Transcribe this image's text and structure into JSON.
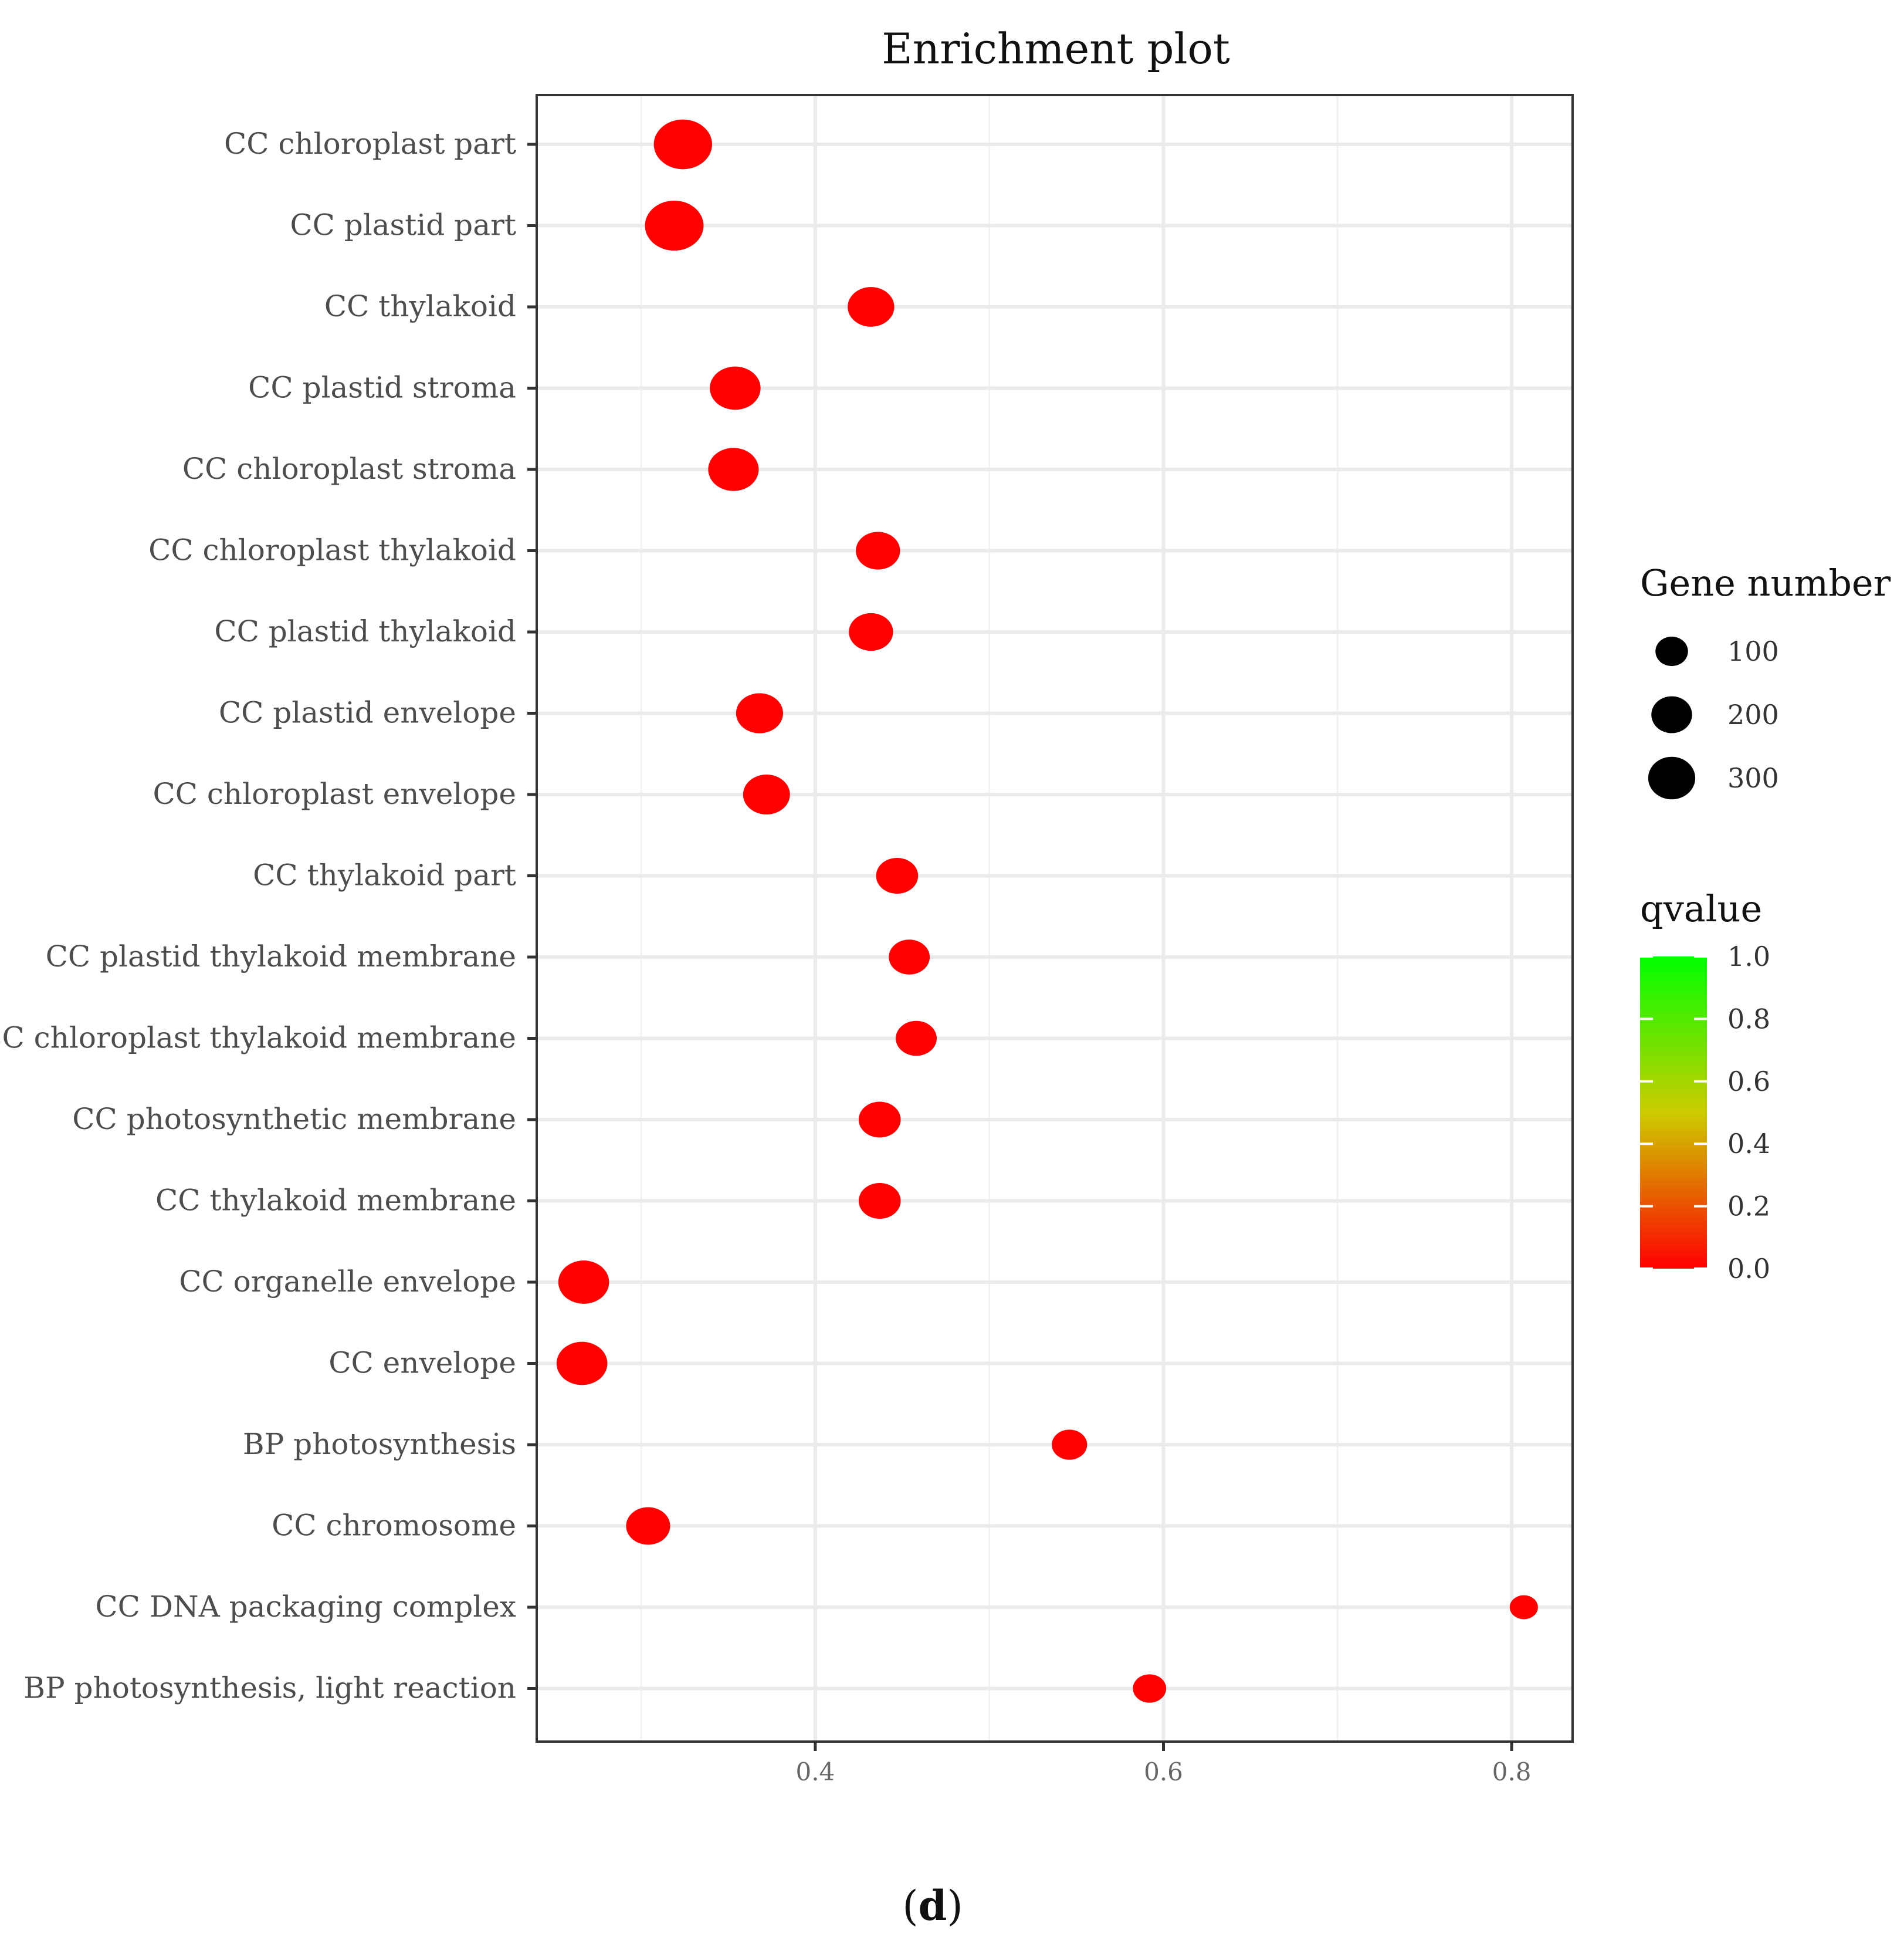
{
  "chart_data": {
    "type": "scatter",
    "title": "Enrichment plot",
    "xlabel": "",
    "ylabel": "",
    "xlim": [
      0.24,
      0.835
    ],
    "x_ticks": [
      0.4,
      0.6,
      0.8
    ],
    "x_tick_labels": [
      "0.4",
      "0.6",
      "0.8"
    ],
    "grid": true,
    "categories": [
      "CC chloroplast part",
      "CC plastid part",
      "CC thylakoid",
      "CC plastid stroma",
      "CC chloroplast stroma",
      "CC chloroplast thylakoid",
      "CC plastid thylakoid",
      "CC plastid envelope",
      "CC chloroplast envelope",
      "CC thylakoid part",
      "CC plastid thylakoid membrane",
      "CC chloroplast thylakoid membrane",
      "CC photosynthetic membrane",
      "CC thylakoid membrane",
      "CC organelle envelope",
      "CC envelope",
      "BP photosynthesis",
      "CC chromosome",
      "CC DNA packaging complex",
      "BP photosynthesis, light reaction"
    ],
    "points": [
      {
        "category": "CC chloroplast part",
        "x": 0.324,
        "gene_number": 330,
        "qvalue": 0.0
      },
      {
        "category": "CC plastid part",
        "x": 0.319,
        "gene_number": 335,
        "qvalue": 0.0
      },
      {
        "category": "CC thylakoid",
        "x": 0.432,
        "gene_number": 175,
        "qvalue": 0.0
      },
      {
        "category": "CC plastid stroma",
        "x": 0.354,
        "gene_number": 225,
        "qvalue": 0.0
      },
      {
        "category": "CC chloroplast stroma",
        "x": 0.353,
        "gene_number": 222,
        "qvalue": 0.0
      },
      {
        "category": "CC chloroplast thylakoid",
        "x": 0.436,
        "gene_number": 150,
        "qvalue": 0.0
      },
      {
        "category": "CC plastid thylakoid",
        "x": 0.432,
        "gene_number": 150,
        "qvalue": 0.0
      },
      {
        "category": "CC plastid envelope",
        "x": 0.368,
        "gene_number": 180,
        "qvalue": 0.0
      },
      {
        "category": "CC chloroplast envelope",
        "x": 0.372,
        "gene_number": 178,
        "qvalue": 0.0
      },
      {
        "category": "CC thylakoid part",
        "x": 0.447,
        "gene_number": 128,
        "qvalue": 0.0
      },
      {
        "category": "CC plastid thylakoid membrane",
        "x": 0.454,
        "gene_number": 118,
        "qvalue": 0.0
      },
      {
        "category": "CC chloroplast thylakoid membrane",
        "x": 0.458,
        "gene_number": 118,
        "qvalue": 0.0
      },
      {
        "category": "CC photosynthetic membrane",
        "x": 0.437,
        "gene_number": 128,
        "qvalue": 0.0
      },
      {
        "category": "CC thylakoid membrane",
        "x": 0.437,
        "gene_number": 128,
        "qvalue": 0.0
      },
      {
        "category": "CC organelle envelope",
        "x": 0.267,
        "gene_number": 225,
        "qvalue": 0.0
      },
      {
        "category": "CC envelope",
        "x": 0.266,
        "gene_number": 225,
        "qvalue": 0.0
      },
      {
        "category": "BP photosynthesis",
        "x": 0.546,
        "gene_number": 72,
        "qvalue": 0.0
      },
      {
        "category": "CC chromosome",
        "x": 0.304,
        "gene_number": 148,
        "qvalue": 0.0
      },
      {
        "category": "CC DNA packaging complex",
        "x": 0.807,
        "gene_number": 30,
        "qvalue": 0.0
      },
      {
        "category": "BP photosynthesis, light reaction",
        "x": 0.592,
        "gene_number": 58,
        "qvalue": 0.0
      }
    ],
    "size_legend": {
      "title": "Gene number",
      "values": [
        100,
        200,
        300
      ],
      "labels": [
        "100",
        "200",
        "300"
      ]
    },
    "color_legend": {
      "title": "qvalue",
      "range": [
        0.0,
        1.0
      ],
      "ticks": [
        1.0,
        0.8,
        0.6,
        0.4,
        0.2,
        0.0
      ],
      "tick_labels": [
        "1.0",
        "0.8",
        "0.6",
        "0.4",
        "0.2",
        "0.0"
      ],
      "low_color": "#ff0000",
      "high_color": "#00ff00"
    },
    "point_color": "#ff0000"
  },
  "caption": {
    "open": "(",
    "letter": "d",
    "close": ")"
  }
}
